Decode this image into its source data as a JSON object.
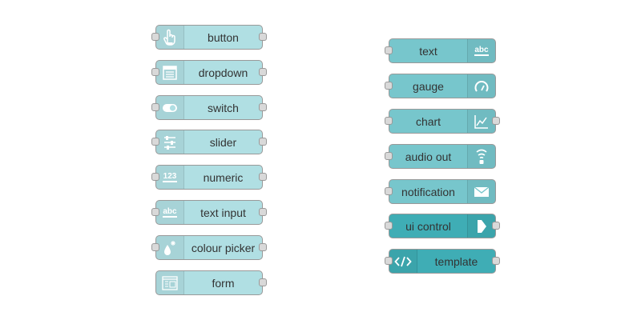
{
  "palette": {
    "input_node_color": "#b0dfe3",
    "output_node_color": "#77c6cc",
    "control_node_color": "#3fadb5",
    "port_color": "#d9d9d9"
  },
  "input_nodes": [
    {
      "label": "button",
      "icon": "hand-pointer-icon"
    },
    {
      "label": "dropdown",
      "icon": "list-icon"
    },
    {
      "label": "switch",
      "icon": "toggle-icon"
    },
    {
      "label": "slider",
      "icon": "sliders-icon"
    },
    {
      "label": "numeric",
      "icon": "numeric-123-icon"
    },
    {
      "label": "text input",
      "icon": "abc-text-icon"
    },
    {
      "label": "colour picker",
      "icon": "paint-drop-icon"
    },
    {
      "label": "form",
      "icon": "form-icon"
    }
  ],
  "output_nodes": [
    {
      "label": "text",
      "icon": "abc-text-icon"
    },
    {
      "label": "gauge",
      "icon": "gauge-icon"
    },
    {
      "label": "chart",
      "icon": "line-chart-icon"
    },
    {
      "label": "audio out",
      "icon": "audio-wave-icon"
    },
    {
      "label": "notification",
      "icon": "envelope-icon"
    },
    {
      "label": "ui control",
      "icon": "arrow-right-icon"
    },
    {
      "label": "template",
      "icon": "code-icon"
    }
  ]
}
